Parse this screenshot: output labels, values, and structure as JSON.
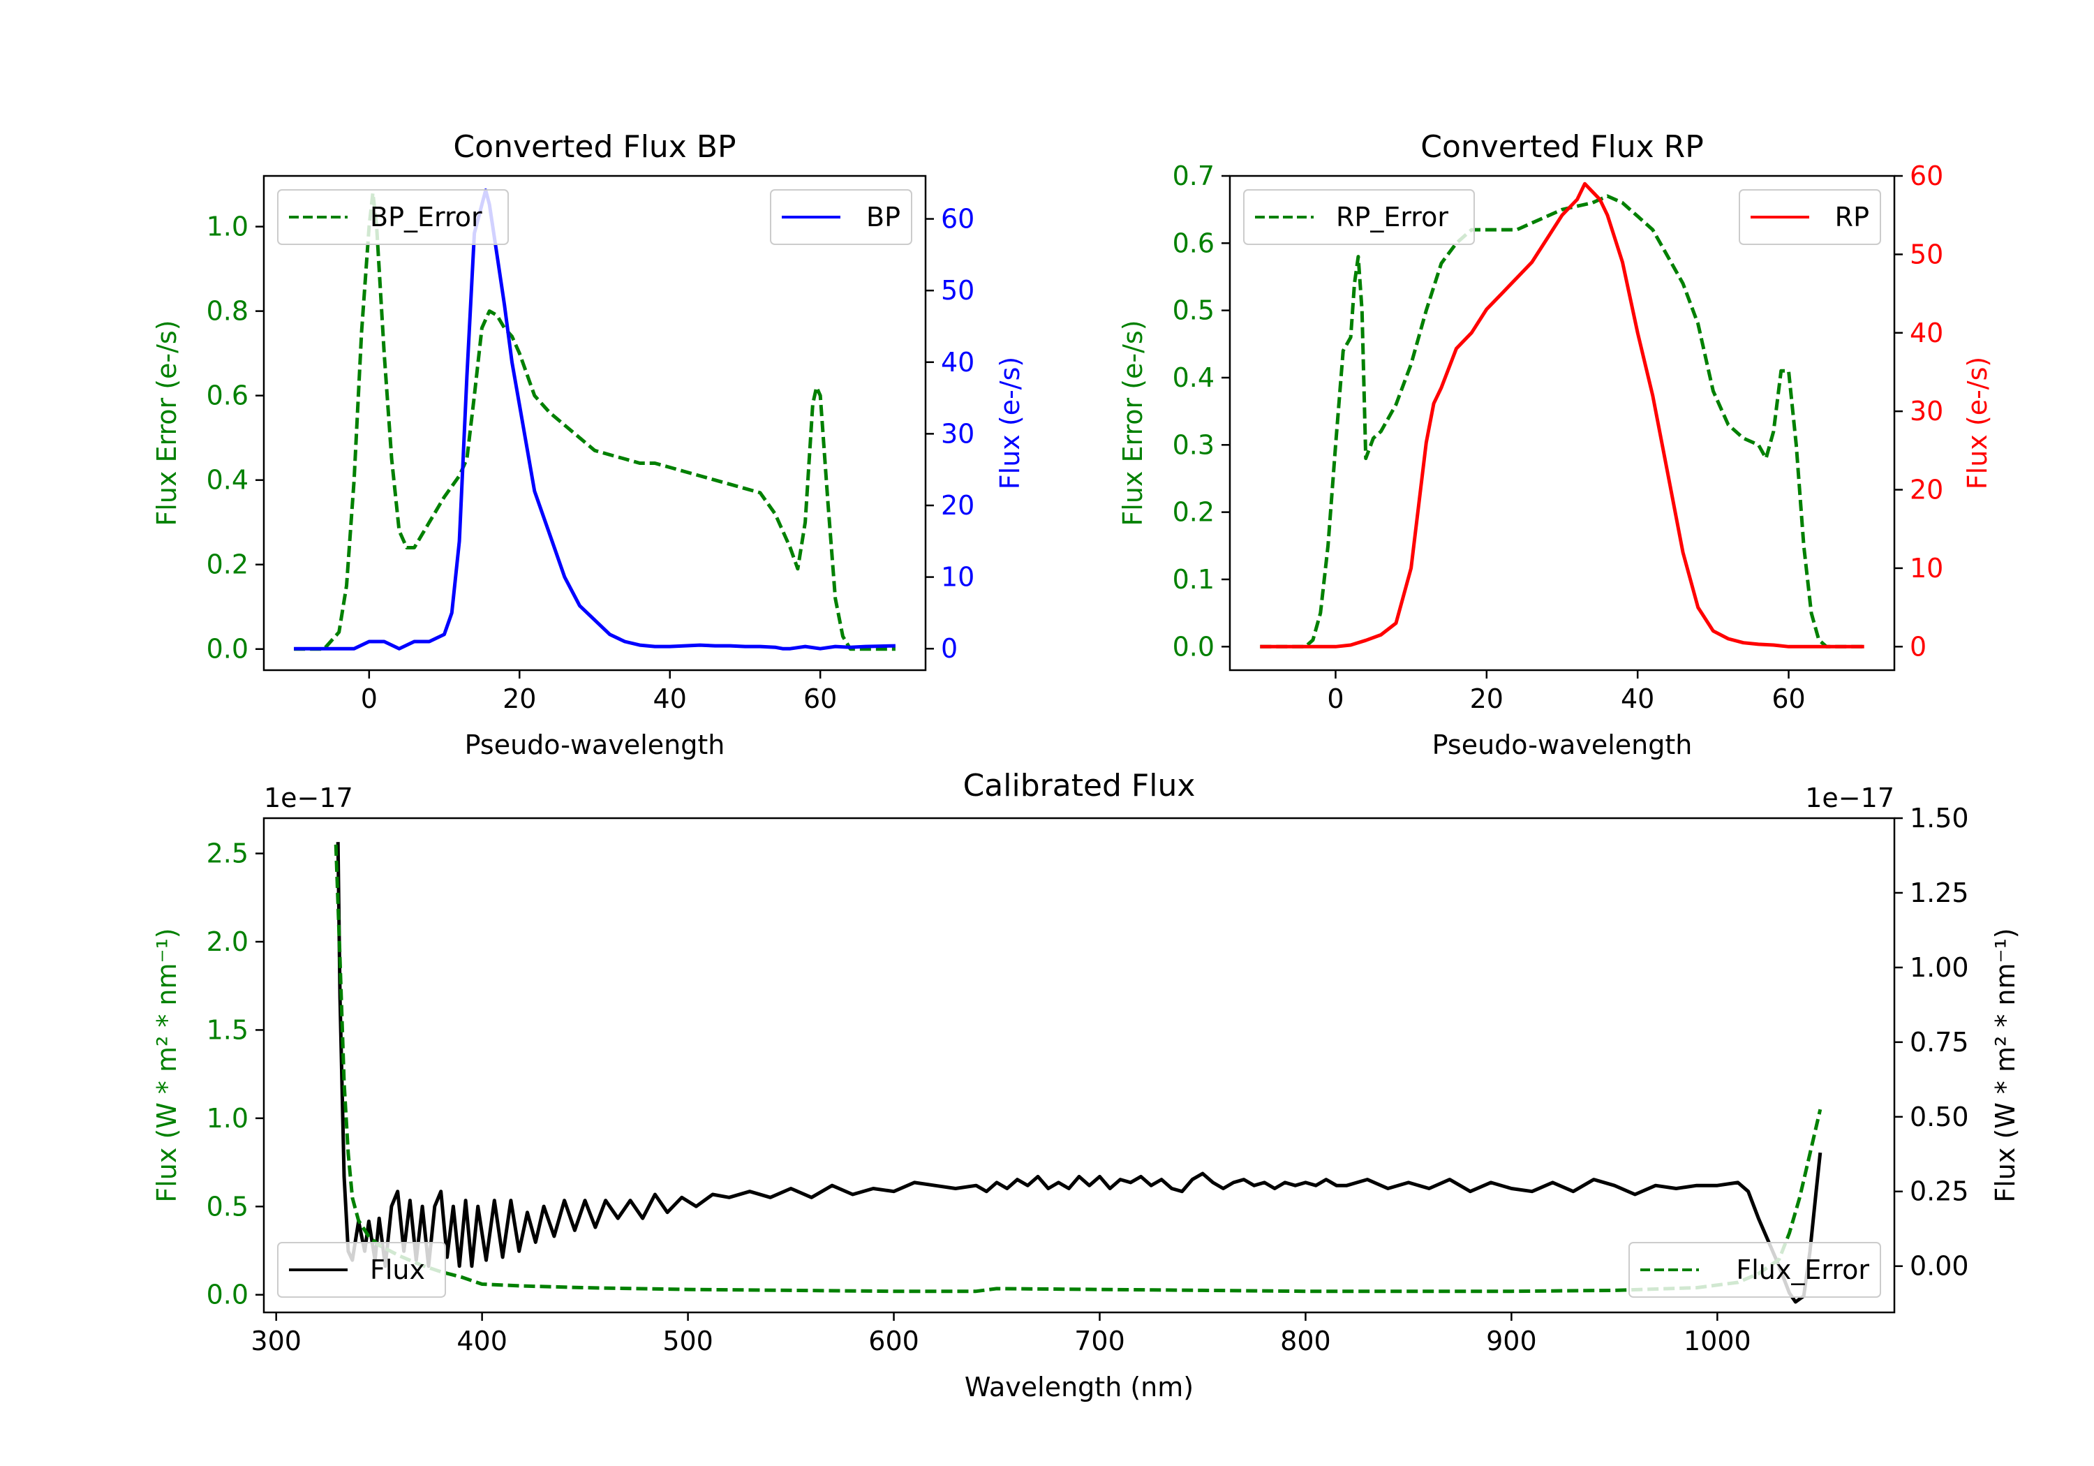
{
  "colors": {
    "green": "#008000",
    "blue": "#0000ff",
    "red": "#ff0000",
    "black": "#000000"
  },
  "chart_data": [
    {
      "type": "line",
      "title": "Converted Flux BP",
      "xlabel": "Pseudo-wavelength",
      "ylabel_left": "Flux Error (e-/s)",
      "ylabel_right": "Flux (e-/s)",
      "xlim": [
        -14,
        74
      ],
      "ylim_left": [
        -0.05,
        1.12
      ],
      "ylim_right": [
        -3,
        66
      ],
      "xticks": [
        0,
        20,
        40,
        60
      ],
      "yticks_left": [
        "0.0",
        "0.2",
        "0.4",
        "0.6",
        "0.8",
        "1.0"
      ],
      "yticks_right": [
        "0",
        "10",
        "20",
        "30",
        "40",
        "50",
        "60"
      ],
      "legend_left": "BP_Error",
      "legend_right": "BP",
      "series": [
        {
          "name": "BP_Error",
          "axis": "left",
          "color": "#008000",
          "dash": true,
          "x": [
            -10,
            -6,
            -4,
            -3,
            -2,
            -1,
            0,
            0.5,
            1,
            2,
            3,
            4,
            5,
            6,
            8,
            10,
            12,
            13,
            14,
            15,
            16,
            17,
            18,
            19,
            20,
            22,
            24,
            26,
            28,
            30,
            32,
            34,
            36,
            38,
            40,
            42,
            44,
            46,
            48,
            50,
            52,
            54,
            56,
            57,
            58,
            59,
            59.5,
            60,
            61,
            62,
            63,
            64,
            65,
            66,
            70
          ],
          "y": [
            0.0,
            0.0,
            0.04,
            0.15,
            0.4,
            0.75,
            1.0,
            1.08,
            1.0,
            0.7,
            0.45,
            0.28,
            0.24,
            0.24,
            0.3,
            0.36,
            0.41,
            0.45,
            0.6,
            0.76,
            0.8,
            0.79,
            0.76,
            0.74,
            0.7,
            0.6,
            0.56,
            0.53,
            0.5,
            0.47,
            0.46,
            0.45,
            0.44,
            0.44,
            0.43,
            0.42,
            0.41,
            0.4,
            0.39,
            0.38,
            0.37,
            0.32,
            0.24,
            0.19,
            0.3,
            0.58,
            0.62,
            0.6,
            0.35,
            0.12,
            0.03,
            0.0,
            0.0,
            0.0,
            0.0
          ]
        },
        {
          "name": "BP",
          "axis": "right",
          "color": "#0000ff",
          "dash": false,
          "x": [
            -10,
            -4,
            -2,
            0,
            2,
            4,
            6,
            8,
            10,
            11,
            12,
            13,
            14,
            15,
            15.5,
            16,
            17,
            18,
            19,
            20,
            22,
            24,
            26,
            28,
            30,
            32,
            34,
            36,
            38,
            40,
            42,
            44,
            46,
            48,
            50,
            52,
            54,
            55,
            56,
            58,
            60,
            62,
            64,
            66,
            70
          ],
          "y": [
            0,
            0,
            0,
            1,
            1,
            0,
            1,
            1,
            2,
            5,
            15,
            38,
            58,
            62,
            64,
            62,
            55,
            48,
            40,
            34,
            22,
            16,
            10,
            6,
            4,
            2,
            1,
            0.5,
            0.3,
            0.3,
            0.4,
            0.5,
            0.4,
            0.4,
            0.3,
            0.3,
            0.2,
            0,
            0,
            0.3,
            0,
            0.3,
            0.2,
            0.3,
            0.4
          ]
        }
      ]
    },
    {
      "type": "line",
      "title": "Converted Flux RP",
      "xlabel": "Pseudo-wavelength",
      "ylabel_left": "Flux Error (e-/s)",
      "ylabel_right": "Flux (e-/s)",
      "xlim": [
        -14,
        74
      ],
      "ylim_left": [
        -0.035,
        0.7
      ],
      "ylim_right": [
        -3,
        60
      ],
      "xticks": [
        0,
        20,
        40,
        60
      ],
      "yticks_left": [
        "0.0",
        "0.1",
        "0.2",
        "0.3",
        "0.4",
        "0.5",
        "0.6",
        "0.7"
      ],
      "yticks_right": [
        "0",
        "10",
        "20",
        "30",
        "40",
        "50",
        "60"
      ],
      "legend_left": "RP_Error",
      "legend_right": "RP",
      "series": [
        {
          "name": "RP_Error",
          "axis": "left",
          "color": "#008000",
          "dash": true,
          "x": [
            -10,
            -4,
            -3,
            -2,
            -1,
            0,
            1,
            2,
            2.5,
            3,
            3.5,
            4,
            5,
            6,
            8,
            10,
            12,
            14,
            16,
            18,
            20,
            22,
            24,
            26,
            28,
            30,
            32,
            34,
            36,
            38,
            40,
            42,
            44,
            46,
            48,
            50,
            52,
            54,
            56,
            57,
            58,
            59,
            60,
            61,
            62,
            63,
            64,
            65,
            70
          ],
          "y": [
            0.0,
            0.0,
            0.01,
            0.05,
            0.15,
            0.3,
            0.44,
            0.46,
            0.54,
            0.58,
            0.5,
            0.28,
            0.31,
            0.32,
            0.36,
            0.42,
            0.5,
            0.57,
            0.6,
            0.62,
            0.62,
            0.62,
            0.62,
            0.63,
            0.64,
            0.65,
            0.655,
            0.66,
            0.67,
            0.66,
            0.64,
            0.62,
            0.58,
            0.54,
            0.48,
            0.38,
            0.33,
            0.31,
            0.3,
            0.28,
            0.32,
            0.41,
            0.41,
            0.3,
            0.15,
            0.05,
            0.01,
            0.0,
            0.0
          ]
        },
        {
          "name": "RP",
          "axis": "right",
          "color": "#ff0000",
          "dash": false,
          "x": [
            -10,
            0,
            2,
            4,
            6,
            8,
            10,
            12,
            13,
            14,
            16,
            18,
            20,
            22,
            24,
            26,
            28,
            30,
            32,
            33,
            34,
            35,
            36,
            37,
            38,
            40,
            42,
            44,
            46,
            48,
            50,
            52,
            54,
            56,
            58,
            60,
            62,
            64,
            70
          ],
          "y": [
            0,
            0,
            0.2,
            0.8,
            1.5,
            3,
            10,
            26,
            31,
            33,
            38,
            40,
            43,
            45,
            47,
            49,
            52,
            55,
            57,
            59,
            58,
            57,
            55,
            52,
            49,
            40,
            32,
            22,
            12,
            5,
            2,
            1,
            0.5,
            0.3,
            0.2,
            0,
            0,
            0,
            0
          ]
        }
      ]
    },
    {
      "type": "line",
      "title": "Calibrated Flux",
      "xlabel": "Wavelength (nm)",
      "ylabel_left": "Flux (W * m² * nm⁻¹)",
      "ylabel_right": "Flux (W * m² * nm⁻¹)",
      "offset_left": "1e−17",
      "offset_right": "1e−17",
      "xlim": [
        294,
        1086
      ],
      "ylim_left": [
        -0.1,
        2.7
      ],
      "ylim_right": [
        -0.155,
        1.5
      ],
      "xticks": [
        300,
        400,
        500,
        600,
        700,
        800,
        900,
        1000
      ],
      "yticks_left": [
        "0.0",
        "0.5",
        "1.0",
        "1.5",
        "2.0",
        "2.5"
      ],
      "yticks_right": [
        "0.00",
        "0.25",
        "0.50",
        "0.75",
        "1.00",
        "1.25",
        "1.50"
      ],
      "legend_left": "Flux",
      "legend_right": "Flux_Error",
      "series": [
        {
          "name": "Flux",
          "axis": "right",
          "color": "#000000",
          "dash": false,
          "x": [
            330,
            331,
            333,
            335,
            337,
            340,
            343,
            345,
            348,
            350,
            353,
            356,
            359,
            362,
            365,
            368,
            371,
            374,
            377,
            380,
            383,
            386,
            389,
            392,
            395,
            398,
            402,
            406,
            410,
            414,
            418,
            422,
            426,
            430,
            435,
            440,
            445,
            450,
            455,
            460,
            466,
            472,
            478,
            484,
            490,
            497,
            504,
            512,
            520,
            530,
            540,
            550,
            560,
            570,
            580,
            590,
            600,
            610,
            620,
            630,
            640,
            645,
            650,
            655,
            660,
            665,
            670,
            675,
            680,
            685,
            690,
            695,
            700,
            705,
            710,
            715,
            720,
            725,
            730,
            735,
            740,
            745,
            750,
            755,
            760,
            765,
            770,
            775,
            780,
            785,
            790,
            795,
            800,
            805,
            810,
            815,
            820,
            825,
            830,
            840,
            850,
            860,
            870,
            880,
            890,
            900,
            910,
            920,
            930,
            940,
            950,
            960,
            970,
            980,
            990,
            1000,
            1010,
            1015,
            1020,
            1025,
            1030,
            1035,
            1038,
            1042,
            1045,
            1048,
            1050
          ],
          "y": [
            1.42,
            0.9,
            0.3,
            0.05,
            0.02,
            0.15,
            0.05,
            0.15,
            0.02,
            0.16,
            0.0,
            0.2,
            0.25,
            0.05,
            0.22,
            0.02,
            0.2,
            0.0,
            0.2,
            0.25,
            0.03,
            0.2,
            0.0,
            0.22,
            0.0,
            0.2,
            0.02,
            0.22,
            0.03,
            0.22,
            0.05,
            0.18,
            0.08,
            0.2,
            0.1,
            0.22,
            0.12,
            0.22,
            0.13,
            0.22,
            0.16,
            0.22,
            0.16,
            0.24,
            0.18,
            0.23,
            0.2,
            0.24,
            0.23,
            0.25,
            0.23,
            0.26,
            0.23,
            0.27,
            0.24,
            0.26,
            0.25,
            0.28,
            0.27,
            0.26,
            0.27,
            0.25,
            0.28,
            0.26,
            0.29,
            0.27,
            0.3,
            0.26,
            0.28,
            0.26,
            0.3,
            0.27,
            0.3,
            0.26,
            0.29,
            0.28,
            0.3,
            0.27,
            0.29,
            0.26,
            0.25,
            0.29,
            0.31,
            0.28,
            0.26,
            0.28,
            0.29,
            0.27,
            0.28,
            0.26,
            0.28,
            0.27,
            0.28,
            0.27,
            0.29,
            0.27,
            0.27,
            0.28,
            0.29,
            0.26,
            0.28,
            0.26,
            0.29,
            0.25,
            0.28,
            0.26,
            0.25,
            0.28,
            0.25,
            0.29,
            0.27,
            0.24,
            0.27,
            0.26,
            0.27,
            0.27,
            0.28,
            0.25,
            0.16,
            0.08,
            0.0,
            -0.09,
            -0.12,
            -0.1,
            0.05,
            0.25,
            0.38
          ]
        },
        {
          "name": "Flux_Error",
          "axis": "left",
          "color": "#008000",
          "dash": true,
          "x": [
            329,
            331,
            333,
            335,
            337,
            340,
            345,
            350,
            360,
            370,
            380,
            390,
            400,
            420,
            450,
            500,
            550,
            600,
            640,
            650,
            700,
            750,
            800,
            850,
            900,
            950,
            990,
            1010,
            1020,
            1030,
            1035,
            1040,
            1045,
            1050
          ],
          "y": [
            2.55,
            1.9,
            1.2,
            0.8,
            0.55,
            0.42,
            0.33,
            0.28,
            0.22,
            0.17,
            0.13,
            0.1,
            0.06,
            0.05,
            0.04,
            0.03,
            0.025,
            0.02,
            0.02,
            0.035,
            0.03,
            0.025,
            0.02,
            0.02,
            0.02,
            0.025,
            0.04,
            0.07,
            0.12,
            0.2,
            0.35,
            0.55,
            0.8,
            1.05
          ]
        }
      ]
    }
  ]
}
